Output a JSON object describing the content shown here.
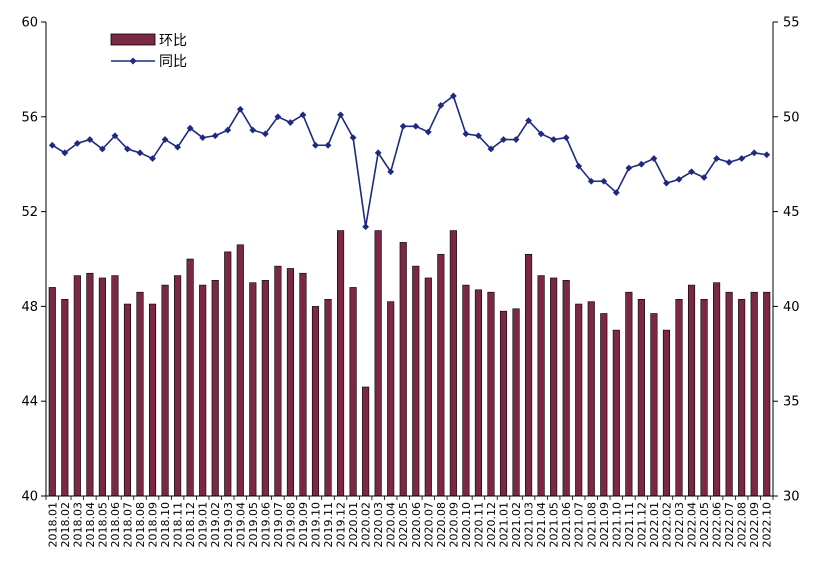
{
  "chart_data": {
    "type": "bar+line",
    "title": "",
    "xlabel": "",
    "ylabel_left": "",
    "ylabel_right": "",
    "ylim_left": [
      40,
      60
    ],
    "ylim_right": [
      30,
      55
    ],
    "yticks_left": [
      "40",
      "44",
      "48",
      "52",
      "56",
      "60"
    ],
    "yticks_right": [
      "30",
      "35",
      "40",
      "45",
      "50",
      "55"
    ],
    "grid": false,
    "legend_position": "top-left",
    "colors": {
      "bar": "#7b2846",
      "line": "#1e2a82",
      "axis": "#000000"
    },
    "categories": [
      "2018.01",
      "2018.02",
      "2018.03",
      "2018.04",
      "2018.05",
      "2018.06",
      "2018.07",
      "2018.08",
      "2018.09",
      "2018.10",
      "2018.11",
      "2018.12",
      "2019.01",
      "2019.02",
      "2019.03",
      "2019.04",
      "2019.05",
      "2019.06",
      "2019.07",
      "2019.08",
      "2019.09",
      "2019.10",
      "2019.11",
      "2019.12",
      "2020.01",
      "2020.02",
      "2020.03",
      "2020.04",
      "2020.05",
      "2020.06",
      "2020.07",
      "2020.08",
      "2020.09",
      "2020.10",
      "2020.11",
      "2020.12",
      "2021.01",
      "2021.02",
      "2021.03",
      "2021.04",
      "2021.05",
      "2021.06",
      "2021.07",
      "2021.08",
      "2021.09",
      "2021.10",
      "2021.11",
      "2021.12",
      "2022.01",
      "2022.02",
      "2022.03",
      "2022.04",
      "2022.05",
      "2022.06",
      "2022.07",
      "2022.08",
      "2022.09",
      "2022.10"
    ],
    "series": [
      {
        "name": "环比",
        "type": "bar",
        "axis": "left",
        "values": [
          48.8,
          48.3,
          49.3,
          49.4,
          49.2,
          49.3,
          48.1,
          48.6,
          48.1,
          48.9,
          49.3,
          50.0,
          48.9,
          49.1,
          50.3,
          50.6,
          49.0,
          49.1,
          49.7,
          49.6,
          49.4,
          48.0,
          48.3,
          51.2,
          48.8,
          44.6,
          51.2,
          48.2,
          50.7,
          49.7,
          49.2,
          50.2,
          51.2,
          48.9,
          48.7,
          48.6,
          47.8,
          47.9,
          50.2,
          49.3,
          49.2,
          49.1,
          48.1,
          48.2,
          47.7,
          47.0,
          48.6,
          48.3,
          47.7,
          47.0,
          48.3,
          48.9,
          48.3,
          49.0,
          48.6,
          48.3,
          48.6,
          48.6
        ]
      },
      {
        "name": "同比",
        "type": "line",
        "axis": "right",
        "values": [
          48.5,
          48.1,
          48.6,
          48.8,
          48.3,
          49.0,
          48.3,
          48.1,
          47.8,
          48.8,
          48.4,
          49.4,
          48.9,
          49.0,
          49.3,
          50.4,
          49.3,
          49.1,
          50.0,
          49.7,
          50.1,
          48.5,
          48.5,
          50.1,
          48.9,
          44.2,
          48.1,
          47.1,
          49.5,
          49.5,
          49.2,
          50.6,
          51.1,
          49.1,
          49.0,
          48.3,
          48.8,
          48.8,
          49.8,
          49.1,
          48.8,
          48.9,
          47.4,
          46.6,
          46.6,
          46.0,
          47.3,
          47.5,
          47.8,
          46.5,
          46.7,
          47.1,
          46.8,
          47.8,
          47.6,
          47.8,
          48.1,
          48.0
        ]
      }
    ]
  }
}
